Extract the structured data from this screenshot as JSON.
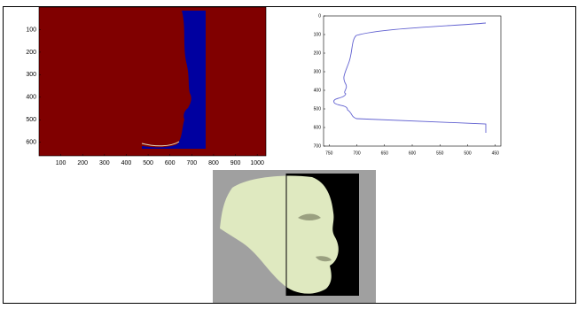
{
  "left_plot": {
    "xlim": [
      0,
      1040
    ],
    "ylim": [
      0,
      660
    ],
    "xticks": [
      100,
      200,
      300,
      400,
      500,
      600,
      700,
      800,
      900,
      1000
    ],
    "yticks": [
      100,
      200,
      300,
      400,
      500,
      600
    ]
  },
  "right_plot": {
    "xlim": [
      760,
      440
    ],
    "ylim": [
      0,
      700
    ],
    "xticks": [
      750,
      700,
      650,
      600,
      550,
      500,
      450
    ],
    "yticks": [
      0,
      100,
      200,
      300,
      400,
      500,
      600,
      700
    ]
  }
}
